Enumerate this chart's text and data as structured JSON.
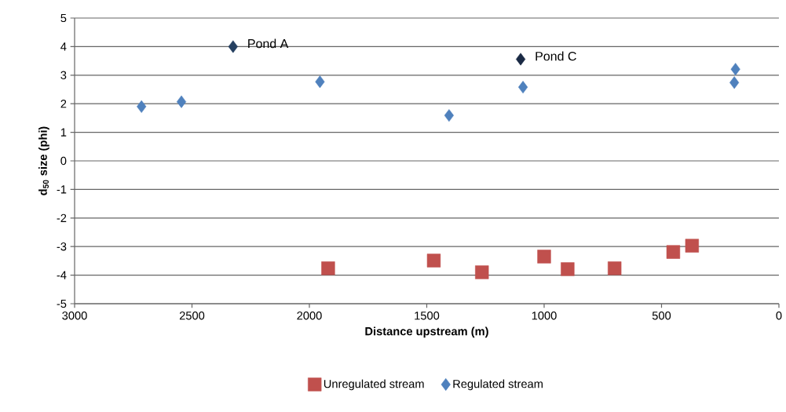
{
  "chart_data": {
    "type": "scatter",
    "xlabel": "Distance upstream (m)",
    "ylabel": "d$_{50}$ size (phi)",
    "xlim": [
      3000,
      0
    ],
    "xticks": [
      3000,
      2500,
      2000,
      1500,
      1000,
      500,
      0
    ],
    "ylim": [
      -5,
      5
    ],
    "yticks": [
      -5,
      -4,
      -3,
      -2,
      -1,
      0,
      1,
      2,
      3,
      4,
      5
    ],
    "grid": "y",
    "legend": "bottom",
    "series": [
      {
        "name": "Unregulated stream",
        "color": "#c0504d",
        "marker": "square",
        "x": [
          1920,
          1470,
          1265,
          1000,
          900,
          700,
          450,
          370
        ],
        "values": [
          -3.76,
          -3.49,
          -3.9,
          -3.35,
          -3.79,
          -3.76,
          -3.19,
          -2.97
        ]
      },
      {
        "name": "Regulated stream",
        "color": "#4f81bd",
        "marker": "diamond",
        "x": [
          2715,
          2545,
          2325,
          1955,
          1405,
          1100,
          1090,
          185,
          190
        ],
        "values": [
          1.9,
          2.07,
          4.0,
          2.77,
          1.59,
          3.56,
          2.58,
          3.21,
          2.74
        ],
        "colors": [
          "#4f81bd",
          "#4f81bd",
          "#243f60",
          "#4f81bd",
          "#4f81bd",
          "#1a2a44",
          "#4f81bd",
          "#4f81bd",
          "#4f81bd"
        ]
      }
    ],
    "annotations": [
      {
        "text": "Pond A",
        "x": 2325,
        "y": 4.0
      },
      {
        "text": "Pond C",
        "x": 1100,
        "y": 3.56
      }
    ]
  }
}
